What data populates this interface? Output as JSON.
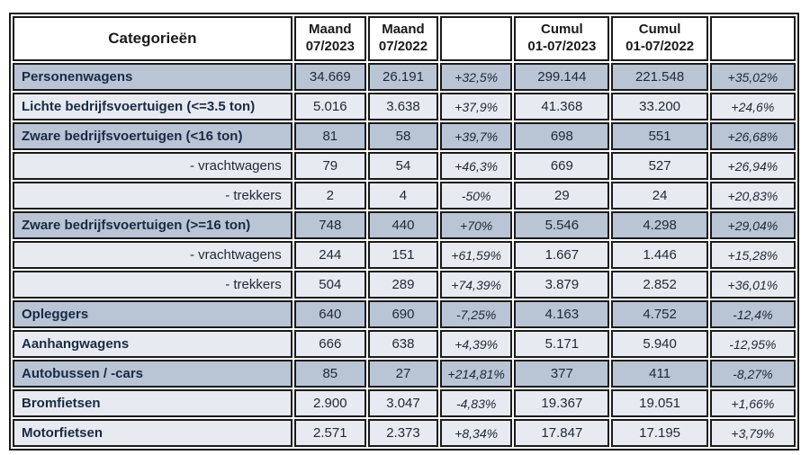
{
  "colors": {
    "row_dark": "#b9c4d5",
    "row_light": "#e7eaf0",
    "border": "#1b1b1b",
    "header_bg": "#ffffff",
    "number_text": "#1f2837",
    "label_text": "#182a44"
  },
  "table": {
    "header": [
      {
        "line1": "Categorieën",
        "line2": ""
      },
      {
        "line1": "Maand",
        "line2": "07/2023"
      },
      {
        "line1": "Maand",
        "line2": "07/2022"
      },
      {
        "line1": "",
        "line2": ""
      },
      {
        "line1": "Cumul",
        "line2": "01-07/2023"
      },
      {
        "line1": "Cumul",
        "line2": "01-07/2022"
      },
      {
        "line1": "",
        "line2": ""
      }
    ],
    "rows": [
      {
        "label": "Personenwagens",
        "shade": "dark",
        "emphasis": "bold",
        "maand_2023": "34.669",
        "maand_2022": "26.191",
        "pct_maand": "+32,5%",
        "cumul_2023": "299.144",
        "cumul_2022": "221.548",
        "pct_cumul": "+35,02%"
      },
      {
        "label": "Lichte bedrijfsvoertuigen (<=3.5 ton)",
        "shade": "light",
        "emphasis": "bold",
        "maand_2023": "5.016",
        "maand_2022": "3.638",
        "pct_maand": "+37,9%",
        "cumul_2023": "41.368",
        "cumul_2022": "33.200",
        "pct_cumul": "+24,6%"
      },
      {
        "label": "Zware bedrijfsvoertuigen (<16 ton)",
        "shade": "dark",
        "emphasis": "bold",
        "maand_2023": "81",
        "maand_2022": "58",
        "pct_maand": "+39,7%",
        "cumul_2023": "698",
        "cumul_2022": "551",
        "pct_cumul": "+26,68%"
      },
      {
        "label": "- vrachtwagens",
        "shade": "light",
        "emphasis": "sub",
        "maand_2023": "79",
        "maand_2022": "54",
        "pct_maand": "+46,3%",
        "cumul_2023": "669",
        "cumul_2022": "527",
        "pct_cumul": "+26,94%"
      },
      {
        "label": "- trekkers",
        "shade": "light",
        "emphasis": "sub",
        "maand_2023": "2",
        "maand_2022": "4",
        "pct_maand": "-50%",
        "cumul_2023": "29",
        "cumul_2022": "24",
        "pct_cumul": "+20,83%"
      },
      {
        "label": "Zware bedrijfsvoertuigen (>=16 ton)",
        "shade": "dark",
        "emphasis": "bold",
        "maand_2023": "748",
        "maand_2022": "440",
        "pct_maand": "+70%",
        "cumul_2023": "5.546",
        "cumul_2022": "4.298",
        "pct_cumul": "+29,04%"
      },
      {
        "label": "- vrachtwagens",
        "shade": "light",
        "emphasis": "sub",
        "maand_2023": "244",
        "maand_2022": "151",
        "pct_maand": "+61,59%",
        "cumul_2023": "1.667",
        "cumul_2022": "1.446",
        "pct_cumul": "+15,28%"
      },
      {
        "label": "- trekkers",
        "shade": "light",
        "emphasis": "sub",
        "maand_2023": "504",
        "maand_2022": "289",
        "pct_maand": "+74,39%",
        "cumul_2023": "3.879",
        "cumul_2022": "2.852",
        "pct_cumul": "+36,01%"
      },
      {
        "label": "Opleggers",
        "shade": "dark",
        "emphasis": "bold",
        "maand_2023": "640",
        "maand_2022": "690",
        "pct_maand": "-7,25%",
        "cumul_2023": "4.163",
        "cumul_2022": "4.752",
        "pct_cumul": "-12,4%"
      },
      {
        "label": "Aanhangwagens",
        "shade": "light",
        "emphasis": "bold",
        "maand_2023": "666",
        "maand_2022": "638",
        "pct_maand": "+4,39%",
        "cumul_2023": "5.171",
        "cumul_2022": "5.940",
        "pct_cumul": "-12,95%"
      },
      {
        "label": "Autobussen / -cars",
        "shade": "dark",
        "emphasis": "bold",
        "maand_2023": "85",
        "maand_2022": "27",
        "pct_maand": "+214,81%",
        "cumul_2023": "377",
        "cumul_2022": "411",
        "pct_cumul": "-8,27%"
      },
      {
        "label": "Bromfietsen",
        "shade": "light",
        "emphasis": "bold",
        "maand_2023": "2.900",
        "maand_2022": "3.047",
        "pct_maand": "-4,83%",
        "cumul_2023": "19.367",
        "cumul_2022": "19.051",
        "pct_cumul": "+1,66%"
      },
      {
        "label": "Motorfietsen",
        "shade": "light",
        "emphasis": "bold",
        "maand_2023": "2.571",
        "maand_2022": "2.373",
        "pct_maand": "+8,34%",
        "cumul_2023": "17.847",
        "cumul_2022": "17.195",
        "pct_cumul": "+3,79%"
      }
    ]
  }
}
